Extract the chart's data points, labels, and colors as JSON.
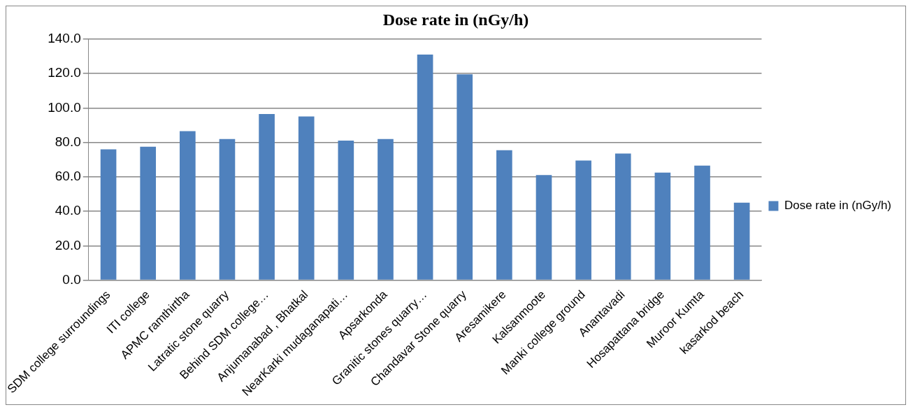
{
  "chart_data": {
    "type": "bar",
    "title": "Dose rate in (nGy/h)",
    "categories": [
      "SDM college surroundings",
      "ITI college",
      "APMC ramthirtha",
      "Latratic stone quarry",
      "Behind SDM college…",
      "Anjumanabad , Bhatkal",
      "NearKarki mudaganapati…",
      "Apsarkonda",
      "Granitic stones quarry…",
      "Chandavar Stone quarry",
      "Aresamikere",
      "Kalsanmoote",
      "Manki college ground",
      "Anantavadi",
      "Hosapattana bridge",
      "Muroor Kumta",
      "kasarkod beach"
    ],
    "series": [
      {
        "name": "Dose rate in (nGy/h)",
        "color": "#4f81bd",
        "values": [
          76,
          77.5,
          86.5,
          82,
          96.5,
          95,
          81,
          82,
          131,
          119.5,
          75.5,
          61,
          69.5,
          73.5,
          62.5,
          66.5,
          45
        ]
      }
    ],
    "ylim": [
      0,
      140
    ],
    "yticks": [
      {
        "value": 0,
        "label": "0.0"
      },
      {
        "value": 20,
        "label": "20.0"
      },
      {
        "value": 40,
        "label": "40.0"
      },
      {
        "value": 60,
        "label": "60.0"
      },
      {
        "value": 80,
        "label": "80.0"
      },
      {
        "value": 100,
        "label": "100.0"
      },
      {
        "value": 120,
        "label": "120.0"
      },
      {
        "value": 140,
        "label": "140.0"
      }
    ],
    "grid": "y",
    "legend": "right"
  }
}
